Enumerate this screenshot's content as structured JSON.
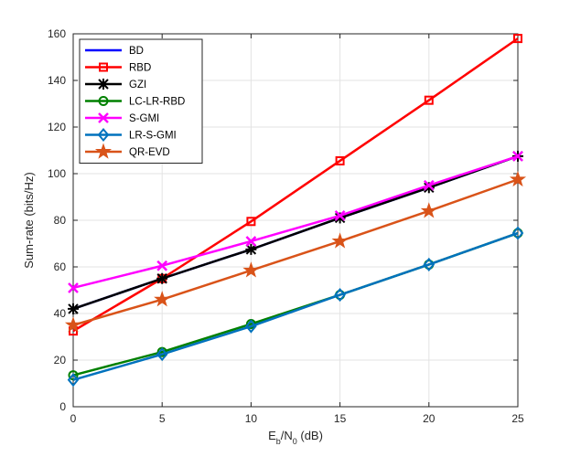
{
  "chart_data": {
    "type": "line",
    "title": "",
    "xlabel_main": "E",
    "xlabel_sub1": "b",
    "xlabel_mid": "/N",
    "xlabel_sub2": "0",
    "xlabel_unit": " (dB)",
    "ylabel": "Sum-rate (bits/Hz)",
    "x": [
      0,
      5,
      10,
      15,
      20,
      25
    ],
    "xlim": [
      0,
      25
    ],
    "ylim": [
      0,
      160
    ],
    "xticks": [
      "0",
      "5",
      "10",
      "15",
      "20",
      "25"
    ],
    "yticks": [
      "0",
      "20",
      "40",
      "60",
      "80",
      "100",
      "120",
      "140",
      "160"
    ],
    "grid": true,
    "legend_position": "top-left",
    "series": [
      {
        "name": "BD",
        "color": "#0000ff",
        "marker": "none",
        "values": [
          42,
          55,
          67.5,
          81,
          94,
          107.5
        ]
      },
      {
        "name": "RBD",
        "color": "#ff0000",
        "marker": "square",
        "values": [
          32.5,
          55,
          79.5,
          105.5,
          131.5,
          158
        ]
      },
      {
        "name": "GZI",
        "color": "#000000",
        "marker": "asterisk",
        "values": [
          42,
          55,
          67.5,
          81,
          94,
          107.5
        ]
      },
      {
        "name": "LC-LR-RBD",
        "color": "#008000",
        "marker": "circle",
        "values": [
          13.5,
          23.5,
          35.5,
          48,
          61,
          74.5
        ]
      },
      {
        "name": "S-GMI",
        "color": "#ff00ff",
        "marker": "x",
        "values": [
          51,
          60.5,
          71,
          82,
          95,
          107.5
        ]
      },
      {
        "name": "LR-S-GMI",
        "color": "#0072bd",
        "marker": "diamond",
        "values": [
          11.5,
          22.5,
          34.5,
          48,
          61,
          74.5
        ]
      },
      {
        "name": "QR-EVD",
        "color": "#d95319",
        "marker": "star",
        "values": [
          35,
          46,
          58.5,
          71,
          84,
          97.5
        ]
      }
    ]
  }
}
